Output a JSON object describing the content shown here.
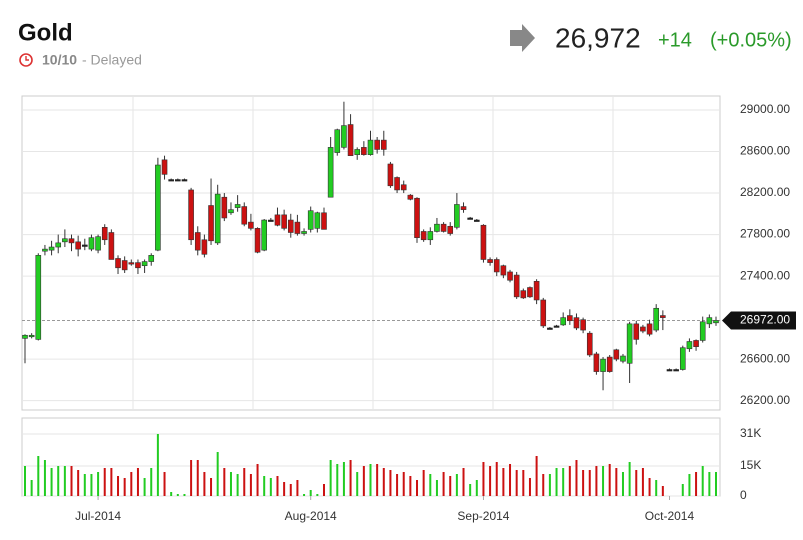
{
  "header": {
    "title": "Gold",
    "date": "10/10",
    "status": "- Delayed",
    "price": "26,972",
    "change": "+14",
    "change_pct": "(+0.05%)"
  },
  "chart_data": {
    "type": "candlestick",
    "up_color": "#22cc22",
    "down_color": "#cc1111",
    "flat_color": "#222222",
    "grid": true,
    "open": [
      26800,
      26820,
      26790,
      27640,
      27650,
      27680,
      27730,
      27760,
      27730,
      27700,
      27660,
      27650,
      27870,
      27820,
      27570,
      27550,
      27530,
      27530,
      27500,
      27540,
      27650,
      28520,
      28330,
      28330,
      28330,
      28230,
      27820,
      27750,
      28080,
      27720,
      28160,
      28010,
      28060,
      28070,
      27920,
      27860,
      27650,
      27940,
      27990,
      27990,
      27940,
      27920,
      27810,
      27850,
      27860,
      28010,
      28160,
      28590,
      28640,
      28860,
      28570,
      28640,
      28570,
      28710,
      28710,
      28480,
      28350,
      28280,
      28180,
      28150,
      27830,
      27750,
      27830,
      27900,
      27880,
      27870,
      28070,
      27960,
      27940,
      27890,
      27560,
      27560,
      27500,
      27440,
      27410,
      27260,
      27290,
      27350,
      27170,
      26900,
      26920,
      26930,
      27020,
      27000,
      26980,
      26850,
      26650,
      26480,
      26620,
      26690,
      26580,
      26560,
      26940,
      26910,
      26940,
      26880,
      27020,
      26500,
      26500,
      26500,
      26700,
      26780,
      26780,
      26940,
      26950
    ],
    "high": [
      26840,
      26850,
      27620,
      27700,
      27740,
      27800,
      27850,
      27800,
      27790,
      27760,
      27800,
      27800,
      27900,
      27850,
      27600,
      27590,
      27560,
      27560,
      27560,
      27620,
      28540,
      28560,
      28340,
      28340,
      28340,
      28250,
      27880,
      27800,
      28340,
      28280,
      28200,
      28110,
      28180,
      28110,
      28000,
      27870,
      27950,
      27960,
      28060,
      28040,
      28000,
      27990,
      27860,
      28070,
      28020,
      28060,
      28740,
      28820,
      29080,
      28960,
      28640,
      28700,
      28800,
      28740,
      28800,
      28500,
      28360,
      28320,
      28190,
      28160,
      27850,
      27870,
      27960,
      27920,
      27920,
      28200,
      28110,
      27970,
      27950,
      27900,
      27580,
      27580,
      27510,
      27460,
      27440,
      27280,
      27300,
      27370,
      27190,
      26910,
      26930,
      27050,
      27080,
      27040,
      27000,
      26870,
      26670,
      26620,
      26640,
      26700,
      26650,
      26960,
      26970,
      26930,
      26980,
      27130,
      27070,
      26510,
      26510,
      26730,
      26800,
      26790,
      27010,
      27030,
      27010
    ],
    "low": [
      26560,
      26800,
      26780,
      27600,
      27600,
      27620,
      27680,
      27640,
      27590,
      27650,
      27640,
      27620,
      27700,
      27560,
      27420,
      27430,
      27500,
      27420,
      27430,
      27500,
      27640,
      28330,
      28320,
      28320,
      28320,
      27700,
      27600,
      27580,
      27700,
      27700,
      27930,
      27990,
      28020,
      27880,
      27840,
      27620,
      27640,
      27930,
      27880,
      27840,
      27770,
      27790,
      27790,
      27820,
      27820,
      27850,
      28160,
      28560,
      28620,
      28560,
      28520,
      28560,
      28560,
      28580,
      28560,
      28250,
      28200,
      28200,
      28130,
      27720,
      27730,
      27700,
      27820,
      27820,
      27790,
      27850,
      28010,
      27950,
      27930,
      27530,
      27500,
      27400,
      27380,
      27340,
      27180,
      27180,
      27190,
      27130,
      26900,
      26890,
      26910,
      26920,
      26930,
      26880,
      26850,
      26620,
      26450,
      26300,
      26470,
      26580,
      26560,
      26370,
      26740,
      26850,
      26820,
      26860,
      26880,
      26490,
      26490,
      26490,
      26670,
      26680,
      26760,
      26900,
      26920
    ],
    "close": [
      26830,
      26830,
      27600,
      27660,
      27680,
      27720,
      27760,
      27720,
      27660,
      27700,
      27770,
      27780,
      27750,
      27560,
      27480,
      27460,
      27520,
      27480,
      27540,
      27600,
      28470,
      28380,
      28330,
      28330,
      28330,
      27750,
      27650,
      27610,
      27740,
      28190,
      27960,
      28040,
      28090,
      27900,
      27860,
      27630,
      27940,
      27940,
      27890,
      27860,
      27820,
      27810,
      27830,
      28030,
      28010,
      27850,
      28640,
      28810,
      28850,
      28560,
      28620,
      28570,
      28710,
      28620,
      28620,
      28270,
      28230,
      28230,
      28140,
      27770,
      27750,
      27830,
      27900,
      27830,
      27810,
      28090,
      28040,
      27960,
      27940,
      27560,
      27530,
      27440,
      27410,
      27360,
      27200,
      27190,
      27200,
      27170,
      26920,
      26900,
      26920,
      27000,
      26970,
      26900,
      26880,
      26640,
      26480,
      26600,
      26480,
      26600,
      26630,
      26940,
      26790,
      26870,
      26840,
      27090,
      27000,
      26500,
      26500,
      26710,
      26770,
      26720,
      26960,
      27000,
      26972
    ],
    "volume": [
      15000,
      8000,
      20000,
      18000,
      14000,
      15000,
      15000,
      15000,
      13000,
      11000,
      11000,
      12000,
      14000,
      14000,
      10000,
      9000,
      12000,
      14000,
      9000,
      14000,
      31000,
      12000,
      2000,
      1000,
      1000,
      18000,
      18000,
      12000,
      9000,
      22000,
      14000,
      12000,
      11000,
      14000,
      11000,
      16000,
      10000,
      9000,
      10000,
      7000,
      6000,
      8000,
      1000,
      3000,
      1000,
      6000,
      18000,
      16000,
      17000,
      18000,
      12000,
      15000,
      16000,
      16000,
      14000,
      13000,
      11000,
      12000,
      10000,
      8000,
      13000,
      11000,
      8000,
      12000,
      10000,
      11000,
      14000,
      6000,
      8000,
      17000,
      15000,
      17000,
      14000,
      16000,
      13000,
      13000,
      9000,
      20000,
      11000,
      11000,
      14000,
      14000,
      15000,
      18000,
      13000,
      13000,
      15000,
      15000,
      16000,
      14000,
      12000,
      17000,
      13000,
      14000,
      9000,
      8000,
      5000,
      0,
      0,
      6000,
      11000,
      12000,
      15000,
      12000,
      12000
    ],
    "ylim": [
      26110,
      29135
    ],
    "yticks": [
      {
        "value": 26200,
        "label": "26200.00"
      },
      {
        "value": 26600,
        "label": "26600.00"
      },
      {
        "value": 27400,
        "label": "27400.00"
      },
      {
        "value": 27800,
        "label": "27800.00"
      },
      {
        "value": 28200,
        "label": "28200.00"
      },
      {
        "value": 28600,
        "label": "28600.00"
      },
      {
        "value": 29000,
        "label": "29000.00"
      }
    ],
    "volume_ylim": [
      0,
      39000
    ],
    "volume_ticks": [
      0,
      {
        "value": 15000,
        "label": "15K"
      },
      {
        "value": 31000,
        "label": "31K"
      }
    ],
    "xticks": [
      {
        "value": 11,
        "label": "Jul-2014"
      },
      {
        "value": 43,
        "label": "Aug-2014"
      },
      {
        "value": 69,
        "label": "Sep-2014"
      },
      {
        "value": 97,
        "label": "Oct-2014"
      }
    ],
    "last_price": {
      "value": 26972,
      "label": "26972.00"
    }
  }
}
